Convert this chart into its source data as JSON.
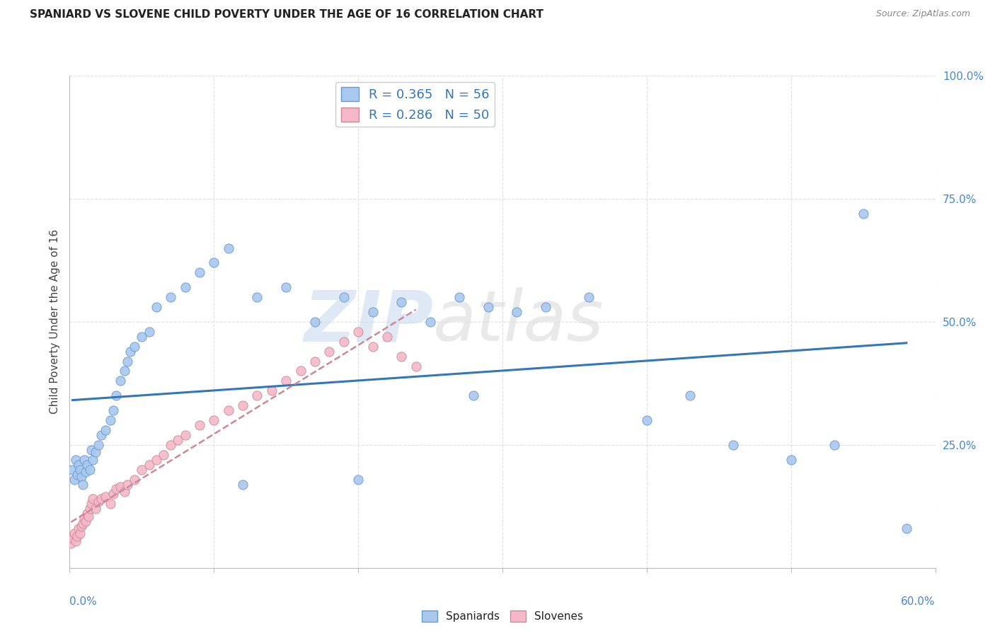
{
  "title": "SPANIARD VS SLOVENE CHILD POVERTY UNDER THE AGE OF 16 CORRELATION CHART",
  "source": "Source: ZipAtlas.com",
  "ylabel": "Child Poverty Under the Age of 16",
  "legend_label1": "Spaniards",
  "legend_label2": "Slovenes",
  "spaniard_color": "#a8c8f0",
  "spaniard_edge": "#6699cc",
  "slovene_color": "#f5b8c8",
  "slovene_edge": "#cc8899",
  "trend_blue": "#3377bb",
  "trend_pink": "#cc8899",
  "watermark_zip": "ZIP",
  "watermark_atlas": "atlas",
  "xlim": [
    0,
    60
  ],
  "ylim": [
    0,
    100
  ],
  "background_color": "#ffffff",
  "grid_color": "#e0e0e0",
  "spaniard_x": [
    0.2,
    0.3,
    0.4,
    0.5,
    0.6,
    0.7,
    0.8,
    0.9,
    1.0,
    1.1,
    1.2,
    1.4,
    1.5,
    1.6,
    1.8,
    2.0,
    2.2,
    2.5,
    2.8,
    3.0,
    3.2,
    3.5,
    3.8,
    4.0,
    4.2,
    4.5,
    5.0,
    5.5,
    6.0,
    7.0,
    8.0,
    9.0,
    10.0,
    11.0,
    13.0,
    15.0,
    17.0,
    19.0,
    21.0,
    23.0,
    25.0,
    27.0,
    29.0,
    31.0,
    33.0,
    36.0,
    40.0,
    43.0,
    46.0,
    50.0,
    53.0,
    55.0,
    12.0,
    20.0,
    28.0,
    58.0
  ],
  "spaniard_y": [
    20.0,
    18.0,
    22.0,
    19.0,
    21.0,
    20.0,
    18.5,
    17.0,
    22.0,
    19.5,
    21.0,
    20.0,
    24.0,
    22.0,
    23.5,
    25.0,
    27.0,
    28.0,
    30.0,
    32.0,
    35.0,
    38.0,
    40.0,
    42.0,
    44.0,
    45.0,
    47.0,
    48.0,
    53.0,
    55.0,
    57.0,
    60.0,
    62.0,
    65.0,
    55.0,
    57.0,
    50.0,
    55.0,
    52.0,
    54.0,
    50.0,
    55.0,
    53.0,
    52.0,
    53.0,
    55.0,
    30.0,
    35.0,
    25.0,
    22.0,
    25.0,
    72.0,
    17.0,
    18.0,
    35.0,
    8.0
  ],
  "slovene_x": [
    0.1,
    0.2,
    0.3,
    0.4,
    0.5,
    0.6,
    0.7,
    0.8,
    0.9,
    1.0,
    1.1,
    1.2,
    1.3,
    1.4,
    1.5,
    1.6,
    1.8,
    2.0,
    2.2,
    2.5,
    2.8,
    3.0,
    3.2,
    3.5,
    3.8,
    4.0,
    4.5,
    5.0,
    5.5,
    6.0,
    6.5,
    7.0,
    7.5,
    8.0,
    9.0,
    10.0,
    11.0,
    12.0,
    13.0,
    14.0,
    15.0,
    16.0,
    17.0,
    18.0,
    19.0,
    20.0,
    21.0,
    22.0,
    23.0,
    24.0
  ],
  "slovene_y": [
    5.0,
    6.0,
    7.0,
    5.5,
    6.5,
    8.0,
    7.0,
    8.5,
    9.0,
    10.0,
    9.5,
    11.0,
    10.5,
    12.0,
    13.0,
    14.0,
    12.0,
    13.5,
    14.0,
    14.5,
    13.0,
    15.0,
    16.0,
    16.5,
    15.5,
    17.0,
    18.0,
    20.0,
    21.0,
    22.0,
    23.0,
    25.0,
    26.0,
    27.0,
    29.0,
    30.0,
    32.0,
    33.0,
    35.0,
    36.0,
    38.0,
    40.0,
    42.0,
    44.0,
    46.0,
    48.0,
    45.0,
    47.0,
    43.0,
    41.0
  ],
  "ytick_vals": [
    25,
    50,
    75,
    100
  ],
  "ytick_labels": [
    "25.0%",
    "50.0%",
    "75.0%",
    "100.0%"
  ],
  "R_spaniard": 0.365,
  "N_spaniard": 56,
  "R_slovene": 0.286,
  "N_slovene": 50
}
